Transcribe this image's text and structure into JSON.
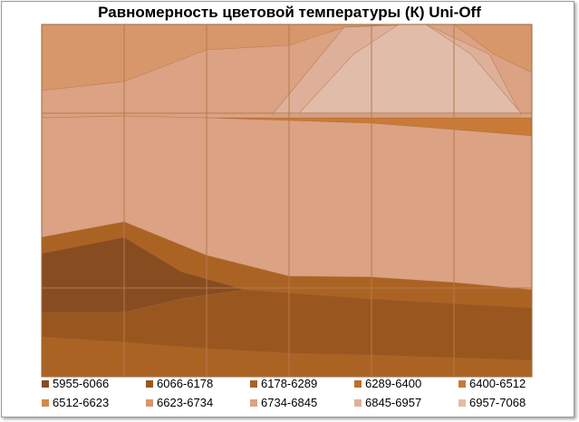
{
  "chart_data": {
    "type": "heatmap",
    "subtype": "filled-contour",
    "title": "Равномерность цветовой температуры (К) Uni-Off",
    "xlabel": "",
    "ylabel": "",
    "grid": true,
    "legend_position": "bottom",
    "levels": [
      {
        "label": "5955-6066",
        "color": "#874c20"
      },
      {
        "label": "6066-6178",
        "color": "#99571f"
      },
      {
        "label": "6178-6289",
        "color": "#ab6324"
      },
      {
        "label": "6289-6400",
        "color": "#bc6e2c"
      },
      {
        "label": "6400-6512",
        "color": "#c97a37"
      },
      {
        "label": "6512-6623",
        "color": "#d4884a"
      },
      {
        "label": "6623-6734",
        "color": "#d8976a"
      },
      {
        "label": "6734-6845",
        "color": "#dba283"
      },
      {
        "label": "6845-6957",
        "color": "#deb09a"
      },
      {
        "label": "6957-7068",
        "color": "#e1bca9"
      }
    ]
  }
}
